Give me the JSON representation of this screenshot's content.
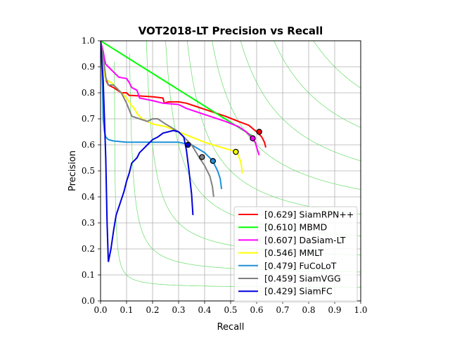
{
  "chart_data": {
    "type": "line",
    "title": "VOT2018-LT Precision vs Recall",
    "xlabel": "Recall",
    "ylabel": "Precision",
    "xlim": [
      0,
      1
    ],
    "ylim": [
      0,
      1
    ],
    "xticks": [
      "0.0",
      "0.1",
      "0.2",
      "0.3",
      "0.4",
      "0.5",
      "0.6",
      "0.7",
      "0.8",
      "0.9",
      "1.0"
    ],
    "yticks": [
      "0.0",
      "0.1",
      "0.2",
      "0.3",
      "0.4",
      "0.5",
      "0.6",
      "0.7",
      "0.8",
      "0.9",
      "1.0"
    ],
    "grid": true,
    "legend_position": "lower-right",
    "iso_f_curves": [
      0.1,
      0.2,
      0.3,
      0.4,
      0.5,
      0.6,
      0.7,
      0.8,
      0.9
    ],
    "iso_f_color": "#66dd66",
    "series": [
      {
        "name": "SiamRPN++",
        "score": "[0.629]",
        "color": "#ff0000",
        "x": [
          0.0,
          0.005,
          0.01,
          0.015,
          0.02,
          0.03,
          0.05,
          0.08,
          0.1,
          0.11,
          0.12,
          0.2,
          0.24,
          0.245,
          0.26,
          0.3,
          0.33,
          0.36,
          0.42,
          0.48,
          0.53,
          0.57,
          0.6,
          0.62,
          0.63,
          0.635
        ],
        "y": [
          1.0,
          0.97,
          0.93,
          0.89,
          0.85,
          0.83,
          0.82,
          0.8,
          0.8,
          0.79,
          0.79,
          0.785,
          0.78,
          0.76,
          0.765,
          0.765,
          0.76,
          0.75,
          0.73,
          0.71,
          0.69,
          0.675,
          0.65,
          0.63,
          0.61,
          0.59
        ],
        "marker": {
          "x": 0.61,
          "y": 0.65
        }
      },
      {
        "name": "MBMD",
        "score": "[0.610]",
        "color": "#00ff00",
        "x": [
          0.0,
          0.59
        ],
        "y": [
          1.0,
          0.63
        ],
        "marker": null
      },
      {
        "name": "DaSiam-LT",
        "score": "[0.607]",
        "color": "#ff00ff",
        "x": [
          0.0,
          0.005,
          0.01,
          0.015,
          0.02,
          0.03,
          0.05,
          0.07,
          0.1,
          0.11,
          0.12,
          0.14,
          0.15,
          0.2,
          0.24,
          0.3,
          0.33,
          0.36,
          0.42,
          0.48,
          0.53,
          0.56,
          0.58,
          0.595,
          0.6,
          0.61
        ],
        "y": [
          1.0,
          0.98,
          0.96,
          0.93,
          0.91,
          0.9,
          0.88,
          0.86,
          0.855,
          0.84,
          0.82,
          0.81,
          0.78,
          0.77,
          0.76,
          0.755,
          0.74,
          0.73,
          0.71,
          0.69,
          0.67,
          0.65,
          0.63,
          0.61,
          0.59,
          0.56
        ],
        "marker": {
          "x": 0.585,
          "y": 0.625
        }
      },
      {
        "name": "MMLT",
        "score": "[0.546]",
        "color": "#ffff00",
        "x": [
          0.0,
          0.005,
          0.01,
          0.02,
          0.04,
          0.06,
          0.08,
          0.1,
          0.12,
          0.13,
          0.14,
          0.15,
          0.16,
          0.2,
          0.25,
          0.3,
          0.35,
          0.4,
          0.45,
          0.5,
          0.52,
          0.53,
          0.54,
          0.545
        ],
        "y": [
          1.0,
          0.95,
          0.9,
          0.85,
          0.84,
          0.82,
          0.8,
          0.78,
          0.75,
          0.74,
          0.72,
          0.71,
          0.7,
          0.68,
          0.67,
          0.65,
          0.63,
          0.61,
          0.595,
          0.58,
          0.575,
          0.56,
          0.53,
          0.49
        ],
        "marker": {
          "x": 0.52,
          "y": 0.573
        }
      },
      {
        "name": "FuCoLoT",
        "score": "[0.479]",
        "color": "#1e90d8",
        "x": [
          0.0,
          0.005,
          0.008,
          0.01,
          0.015,
          0.02,
          0.03,
          0.05,
          0.1,
          0.2,
          0.3,
          0.35,
          0.4,
          0.43,
          0.45,
          0.46,
          0.465
        ],
        "y": [
          1.0,
          0.9,
          0.8,
          0.7,
          0.65,
          0.63,
          0.62,
          0.615,
          0.61,
          0.61,
          0.61,
          0.6,
          0.57,
          0.54,
          0.5,
          0.47,
          0.43
        ],
        "marker": {
          "x": 0.432,
          "y": 0.538
        }
      },
      {
        "name": "SiamVGG",
        "score": "[0.459]",
        "color": "#808080",
        "x": [
          0.0,
          0.005,
          0.01,
          0.015,
          0.02,
          0.03,
          0.05,
          0.08,
          0.09,
          0.1,
          0.12,
          0.15,
          0.18,
          0.2,
          0.22,
          0.25,
          0.3,
          0.35,
          0.38,
          0.4,
          0.42,
          0.43,
          0.435
        ],
        "y": [
          1.0,
          0.97,
          0.94,
          0.9,
          0.86,
          0.83,
          0.83,
          0.8,
          0.78,
          0.76,
          0.71,
          0.7,
          0.69,
          0.7,
          0.7,
          0.68,
          0.65,
          0.6,
          0.55,
          0.52,
          0.48,
          0.44,
          0.4
        ],
        "marker": {
          "x": 0.39,
          "y": 0.553
        }
      },
      {
        "name": "SiamFC",
        "score": "[0.429]",
        "color": "#0000dd",
        "x": [
          0.03,
          0.04,
          0.05,
          0.06,
          0.07,
          0.09,
          0.1,
          0.11,
          0.12,
          0.14,
          0.15,
          0.16,
          0.18,
          0.2,
          0.22,
          0.24,
          0.26,
          0.28,
          0.3,
          0.32,
          0.33,
          0.34,
          0.35,
          0.355
        ],
        "y": [
          0.15,
          0.2,
          0.27,
          0.33,
          0.36,
          0.42,
          0.46,
          0.49,
          0.53,
          0.55,
          0.57,
          0.58,
          0.6,
          0.62,
          0.63,
          0.645,
          0.65,
          0.655,
          0.65,
          0.63,
          0.58,
          0.5,
          0.41,
          0.33
        ],
        "extra_segment": {
          "x": [
            0.0,
            0.01,
            0.02,
            0.025,
            0.03
          ],
          "y": [
            1.0,
            0.85,
            0.55,
            0.3,
            0.15
          ]
        },
        "marker": {
          "x": 0.336,
          "y": 0.6
        }
      }
    ]
  }
}
